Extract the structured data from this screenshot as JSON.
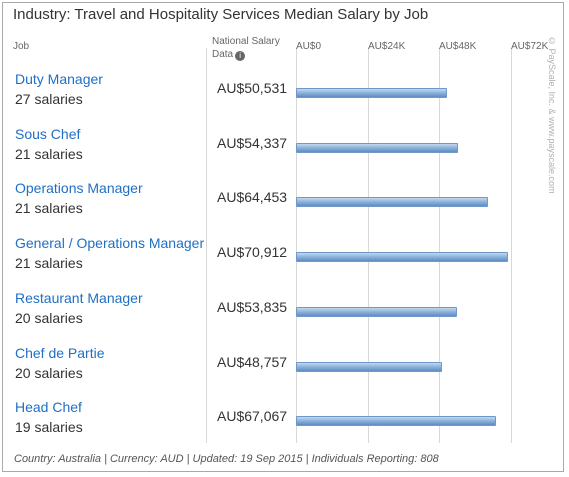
{
  "chart_data": {
    "type": "bar",
    "orientation": "horizontal",
    "title": "Industry: Travel and Hospitality Services Median Salary by Job",
    "column_headers": {
      "job": "Job",
      "salary": "National Salary Data"
    },
    "categories": [
      "Duty Manager",
      "Sous Chef",
      "Operations Manager",
      "General / Operations Manager",
      "Restaurant Manager",
      "Chef de Partie",
      "Head Chef"
    ],
    "salary_counts": [
      "27 salaries",
      "21 salaries",
      "21 salaries",
      "21 salaries",
      "20 salaries",
      "20 salaries",
      "19 salaries"
    ],
    "value_labels": [
      "AU$50,531",
      "AU$54,337",
      "AU$64,453",
      "AU$70,912",
      "AU$53,835",
      "AU$48,757",
      "AU$67,067"
    ],
    "values": [
      50531,
      54337,
      64453,
      70912,
      53835,
      48757,
      67067
    ],
    "xlim": [
      0,
      72000
    ],
    "xticks": [
      0,
      24000,
      48000,
      72000
    ],
    "xtick_labels": [
      "AU$0",
      "AU$24K",
      "AU$48K",
      "AU$72K"
    ],
    "grid": true,
    "legend": "none",
    "bar_color": "#86acd8",
    "link_color": "#1f6fc4"
  },
  "watermark": "© PayScale, Inc. & www.payscale.com",
  "footer": "Country: Australia | Currency: AUD | Updated: 19 Sep 2015 | Individuals Reporting: 808"
}
